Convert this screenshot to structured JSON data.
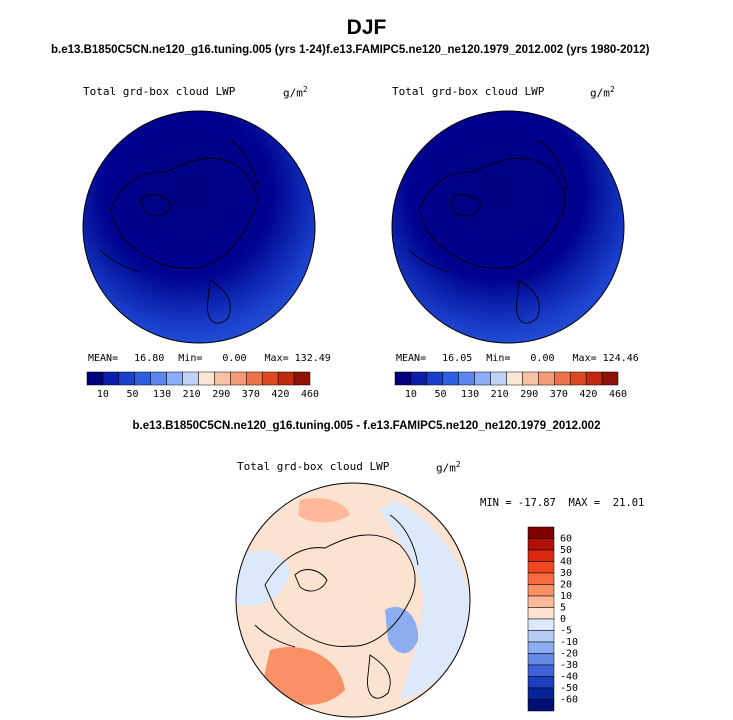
{
  "page_title": "DJF",
  "chart_data": [
    {
      "type": "heatmap",
      "panel": "top-left",
      "case_title": "b.e13.B1850C5CN.ne120_g16.tuning.005 (yrs 1-24)",
      "variable": "Total grd-box cloud LWP",
      "units": "g/m",
      "units_exp": "2",
      "stats": {
        "mean_label": "MEAN=",
        "mean": "16.80",
        "min_label": "Min=",
        "min": "0.00",
        "max_label": "Max=",
        "max": "132.49"
      },
      "colorbar_ticks": [
        "10",
        "50",
        "130",
        "210",
        "290",
        "370",
        "420",
        "460"
      ]
    },
    {
      "type": "heatmap",
      "panel": "top-right",
      "case_title": "f.e13.FAMIPC5.ne120_ne120.1979_2012.002 (yrs 1980-2012)",
      "variable": "Total grd-box cloud LWP",
      "units": "g/m",
      "units_exp": "2",
      "stats": {
        "mean_label": "MEAN=",
        "mean": "16.05",
        "min_label": "Min=",
        "min": "0.00",
        "max_label": "Max=",
        "max": "124.46"
      },
      "colorbar_ticks": [
        "10",
        "50",
        "130",
        "210",
        "290",
        "370",
        "420",
        "460"
      ]
    },
    {
      "type": "heatmap",
      "panel": "bottom-difference",
      "case_title": "b.e13.B1850C5CN.ne120_g16.tuning.005 - f.e13.FAMIPC5.ne120_ne120.1979_2012.002",
      "variable": "Total grd-box cloud LWP",
      "units": "g/m",
      "units_exp": "2",
      "stats_text": "MIN = -17.87  MAX =  21.01",
      "colorbar_ticks": [
        "60",
        "50",
        "40",
        "30",
        "20",
        "10",
        "5",
        "0",
        "-5",
        "-10",
        "-20",
        "-30",
        "-40",
        "-50",
        "-60"
      ]
    }
  ],
  "colors": {
    "abs_scale": [
      "#00007f",
      "#0a1fa8",
      "#1a3fcc",
      "#2c5fe0",
      "#5a86ee",
      "#8cadf5",
      "#bfd3fa",
      "#fbe6d6",
      "#f8c1a4",
      "#f39b76",
      "#ec7349",
      "#dd4a22",
      "#c02a10",
      "#8f1005"
    ],
    "diff_scale": [
      "#7f0000",
      "#b01005",
      "#d9280f",
      "#f0471f",
      "#f76a3f",
      "#fa9066",
      "#fdb99a",
      "#fce2d0",
      "#dce9fb",
      "#b7cdf6",
      "#8eadf0",
      "#6488e6",
      "#3c63d8",
      "#1c3fbe",
      "#07239a",
      "#000f73"
    ],
    "land_outline": "#000000"
  }
}
